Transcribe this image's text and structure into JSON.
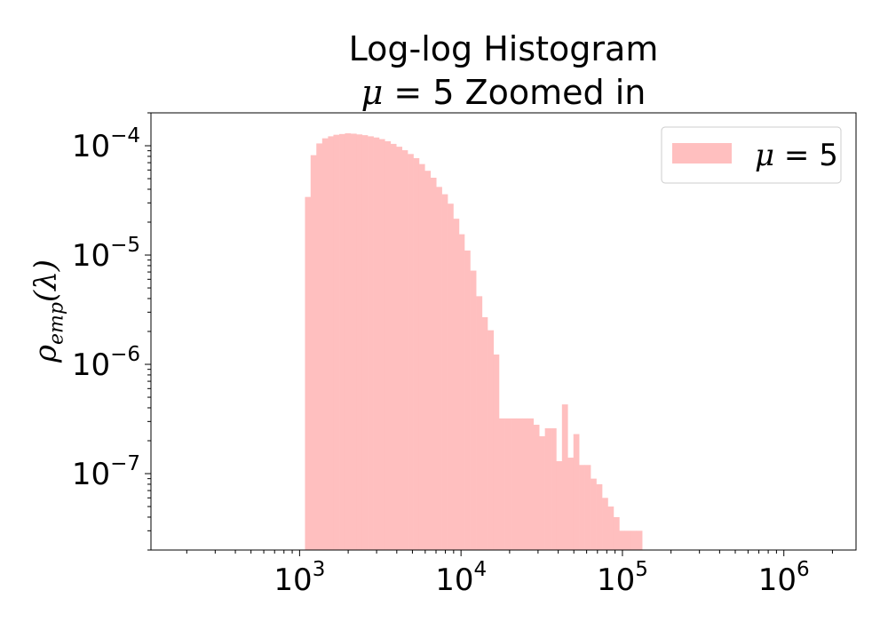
{
  "chart_data": {
    "type": "histogram",
    "title_line1": "Log-log Histogram",
    "title_line2_symbol": "μ",
    "title_line2_rest": " = 5 Zoomed in",
    "ylabel_main": "ρ",
    "ylabel_sub": "emp",
    "ylabel_arg": "(λ)",
    "xscale": "log",
    "yscale": "log",
    "xlim": [
      120,
      2800000
    ],
    "ylim": [
      2e-08,
      0.0002
    ],
    "xticks": [
      {
        "value": 1000,
        "base": "10",
        "exp": "3"
      },
      {
        "value": 10000,
        "base": "10",
        "exp": "4"
      },
      {
        "value": 100000,
        "base": "10",
        "exp": "5"
      },
      {
        "value": 1000000,
        "base": "10",
        "exp": "6"
      }
    ],
    "yticks": [
      {
        "value": 1e-07,
        "base": "10",
        "exp": "−7"
      },
      {
        "value": 1e-06,
        "base": "10",
        "exp": "−6"
      },
      {
        "value": 1e-05,
        "base": "10",
        "exp": "−5"
      },
      {
        "value": 0.0001,
        "base": "10",
        "exp": "−4"
      }
    ],
    "legend": {
      "symbol": "μ",
      "text": " = 5",
      "position": "upper right"
    },
    "series": [
      {
        "color": "#ffbfbf",
        "bins": [
          [
            1080,
            1170,
            3.4e-05
          ],
          [
            1170,
            1270,
            8.2e-05
          ],
          [
            1270,
            1380,
            0.000105
          ],
          [
            1380,
            1500,
            0.000117
          ],
          [
            1500,
            1620,
            0.000122
          ],
          [
            1620,
            1760,
            0.000126
          ],
          [
            1760,
            1910,
            0.000128
          ],
          [
            1910,
            2070,
            0.00013
          ],
          [
            2070,
            2250,
            0.000129
          ],
          [
            2250,
            2440,
            0.000127
          ],
          [
            2440,
            2640,
            0.000125
          ],
          [
            2640,
            2870,
            0.000122
          ],
          [
            2870,
            3110,
            0.000119
          ],
          [
            3110,
            3370,
            0.000115
          ],
          [
            3370,
            3660,
            0.00011
          ],
          [
            3660,
            3970,
            0.000104
          ],
          [
            3970,
            4310,
            9.8e-05
          ],
          [
            4310,
            4670,
            9.1e-05
          ],
          [
            4670,
            5070,
            8.4e-05
          ],
          [
            5070,
            5500,
            7.7e-05
          ],
          [
            5500,
            5960,
            6.8e-05
          ],
          [
            5960,
            6470,
            5.9e-05
          ],
          [
            6470,
            7020,
            5.1e-05
          ],
          [
            7020,
            7610,
            4.2e-05
          ],
          [
            7610,
            8260,
            3.6e-05
          ],
          [
            8260,
            8960,
            2.95e-05
          ],
          [
            8960,
            9720,
            2.15e-05
          ],
          [
            9720,
            10500,
            1.55e-05
          ],
          [
            10500,
            11400,
            1.1e-05
          ],
          [
            11400,
            12400,
            7.2e-06
          ],
          [
            12400,
            13500,
            4.2e-06
          ],
          [
            13500,
            14600,
            2.7e-06
          ],
          [
            14600,
            15900,
            2.05e-06
          ],
          [
            15900,
            17200,
            1.23e-06
          ],
          [
            17200,
            18700,
            3.2e-07
          ],
          [
            18700,
            20300,
            3.2e-07
          ],
          [
            20300,
            22000,
            3.2e-07
          ],
          [
            22000,
            23900,
            3.2e-07
          ],
          [
            23900,
            25900,
            3.2e-07
          ],
          [
            25900,
            28100,
            3.2e-07
          ],
          [
            28100,
            30500,
            2.8e-07
          ],
          [
            30500,
            33100,
            2.2e-07
          ],
          [
            33100,
            35900,
            2.6e-07
          ],
          [
            35900,
            38900,
            2.6e-07
          ],
          [
            38900,
            42200,
            1.3e-07
          ],
          [
            42200,
            45800,
            4.3e-07
          ],
          [
            45800,
            49700,
            1.4e-07
          ],
          [
            49700,
            53900,
            2.3e-07
          ],
          [
            53900,
            58500,
            1.2e-07
          ],
          [
            58500,
            63500,
            1.2e-07
          ],
          [
            63500,
            68900,
            9e-08
          ],
          [
            68900,
            74800,
            8e-08
          ],
          [
            74800,
            81200,
            6e-08
          ],
          [
            81200,
            88100,
            5e-08
          ],
          [
            88100,
            95600,
            4e-08
          ],
          [
            95600,
            103700,
            3e-08
          ],
          [
            103700,
            112500,
            3e-08
          ],
          [
            112500,
            122100,
            3e-08
          ],
          [
            122100,
            132500,
            3e-08
          ]
        ]
      }
    ]
  }
}
